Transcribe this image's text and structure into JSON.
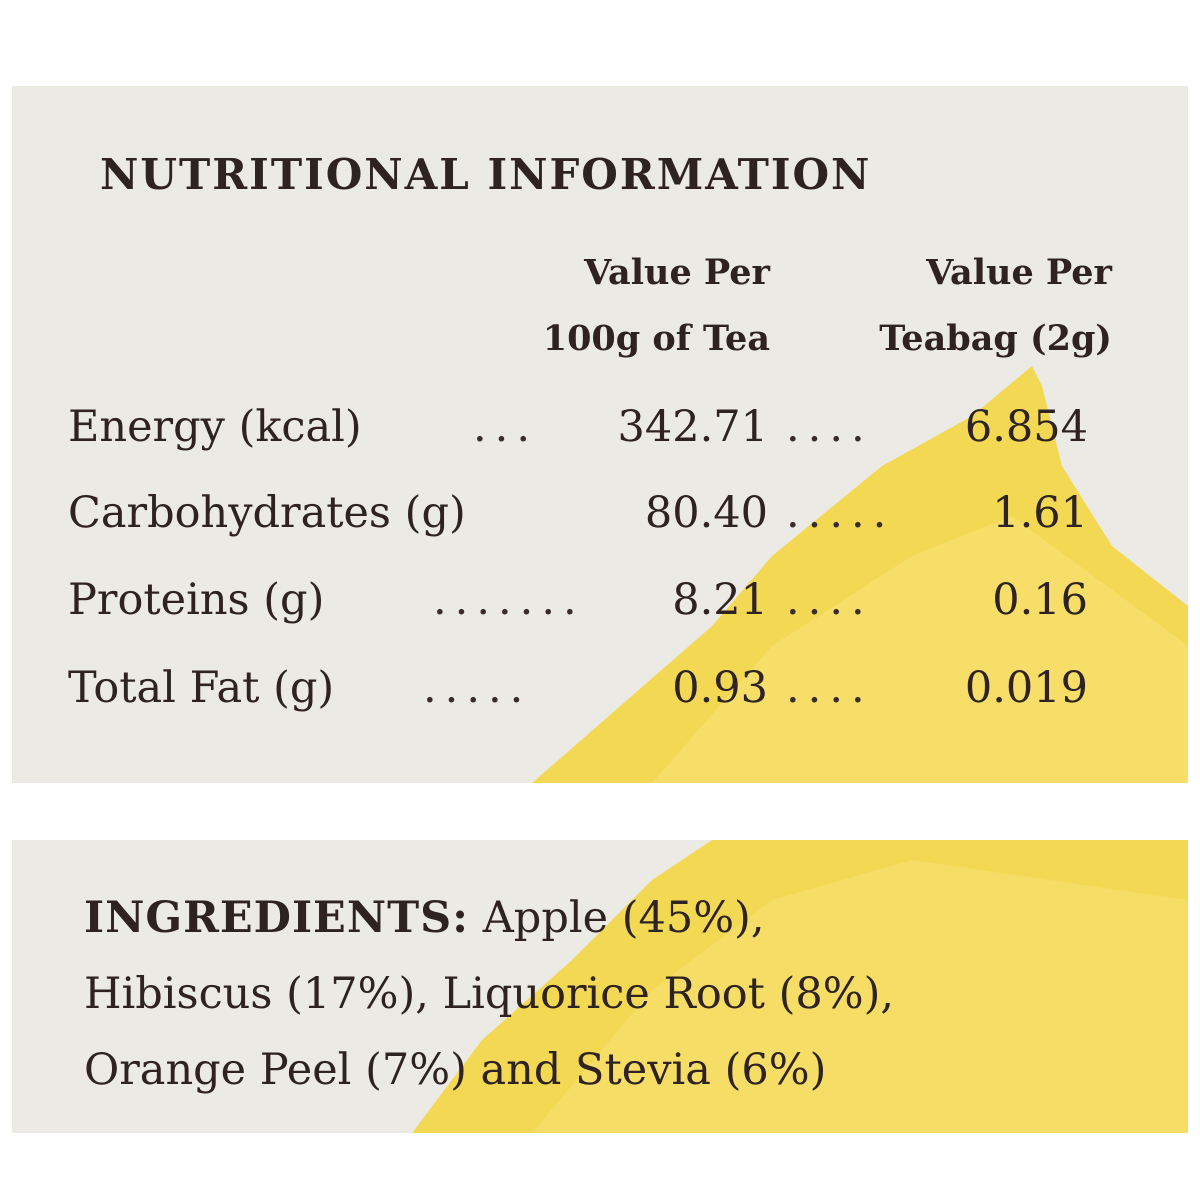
{
  "nutrition": {
    "title": "NUTRITIONAL INFORMATION",
    "col1": [
      "Value Per",
      "100g of Tea"
    ],
    "col2": [
      "Value Per",
      "Teabag (2g)"
    ],
    "rows": [
      {
        "label": "Energy (kcal)",
        "per100g": "342.71",
        "perTeabag": "6.854"
      },
      {
        "label": "Carbohydrates (g)",
        "per100g": "80.40",
        "perTeabag": "1.61"
      },
      {
        "label": "Proteins (g)",
        "per100g": "8.21",
        "perTeabag": "0.16"
      },
      {
        "label": "Total Fat (g)",
        "per100g": "0.93",
        "perTeabag": "0.019"
      }
    ]
  },
  "ingredients": {
    "title": "INGREDIENTS:",
    "lines": [
      "Apple (45%),",
      "Hibiscus (17%), Liquorice Root (8%),",
      "Orange Peel (7%) and Stevia (6%)"
    ]
  },
  "colors": {
    "text": "#2e2320",
    "panel": "#eceae5",
    "splash": "#f4d63a"
  }
}
